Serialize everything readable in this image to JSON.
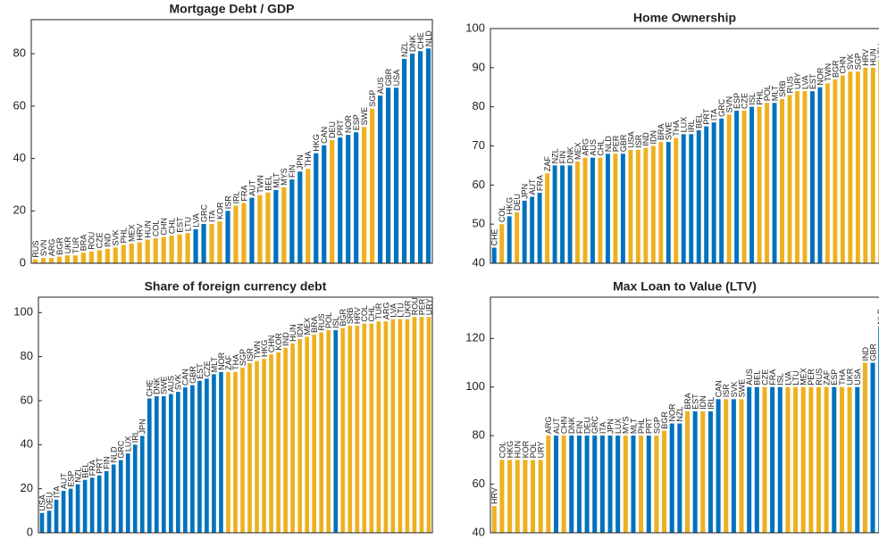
{
  "chart_data": [
    {
      "type": "bar",
      "title": "Mortgage Debt / GDP",
      "categories": [
        "RUS",
        "SVN",
        "ARG",
        "BGR",
        "UKR",
        "TUR",
        "BRA",
        "ROU",
        "CZE",
        "IND",
        "SVK",
        "PHL",
        "MEX",
        "HRV",
        "HUN",
        "COL",
        "CHN",
        "CHL",
        "EST",
        "LTU",
        "LVA",
        "GRC",
        "ITA",
        "KOR",
        "ISR",
        "IRL",
        "FRA",
        "AUT",
        "TWN",
        "BEL",
        "MLT",
        "MYS",
        "FIN",
        "JPN",
        "THA",
        "HKG",
        "CAN",
        "DEU",
        "PRT",
        "NOR",
        "ESP",
        "SWE",
        "SGP",
        "AUS",
        "GBR",
        "USA",
        "NZL",
        "DNK",
        "CHE",
        "NLD"
      ],
      "values": [
        1.5,
        2,
        2,
        2.5,
        3,
        3,
        4,
        4.5,
        5,
        5.5,
        6,
        7,
        7.5,
        8,
        9,
        9.5,
        10,
        10.5,
        11,
        11.5,
        13,
        15,
        15,
        16,
        20,
        22,
        23,
        25,
        26,
        27,
        28,
        29,
        32,
        35,
        36,
        42,
        45,
        47,
        48,
        49,
        50,
        52,
        59,
        64,
        67,
        67,
        78,
        80,
        81,
        82
      ],
      "colors": [
        "#edb120",
        "#edb120",
        "#edb120",
        "#edb120",
        "#edb120",
        "#edb120",
        "#edb120",
        "#edb120",
        "#edb120",
        "#edb120",
        "#edb120",
        "#edb120",
        "#edb120",
        "#edb120",
        "#edb120",
        "#edb120",
        "#edb120",
        "#edb120",
        "#edb120",
        "#edb120",
        "#0072bd",
        "#0072bd",
        "#edb120",
        "#edb120",
        "#0072bd",
        "#edb120",
        "#edb120",
        "#0072bd",
        "#edb120",
        "#edb120",
        "#0072bd",
        "#edb120",
        "#0072bd",
        "#0072bd",
        "#edb120",
        "#0072bd",
        "#0072bd",
        "#edb120",
        "#0072bd",
        "#0072bd",
        "#0072bd",
        "#edb120",
        "#edb120",
        "#0072bd",
        "#0072bd",
        "#0072bd",
        "#0072bd",
        "#0072bd",
        "#0072bd",
        "#0072bd"
      ],
      "ylim": [
        0,
        93
      ],
      "yticks": [
        0,
        20,
        40,
        60,
        80
      ]
    },
    {
      "type": "bar",
      "title": "Home Ownership",
      "categories": [
        "CHE",
        "COL",
        "HKG",
        "DEU",
        "JPN",
        "AUT",
        "FRA",
        "ZAF",
        "NZL",
        "FIN",
        "DNK",
        "MEX",
        "ARG",
        "AUS",
        "CHL",
        "NLD",
        "PER",
        "GBR",
        "USA",
        "ISR",
        "IND",
        "IDN",
        "BRA",
        "SWE",
        "THA",
        "LUX",
        "IRL",
        "BEL",
        "PRT",
        "ITA",
        "GRC",
        "SVN",
        "ESP",
        "CZE",
        "ISL",
        "PHL",
        "POL",
        "MLT",
        "SRB",
        "RUS",
        "URY",
        "LVA",
        "EST",
        "NOR",
        "TWN",
        "BGR",
        "CHN",
        "SVK",
        "SGP",
        "HRV",
        "HUN",
        "LTU"
      ],
      "values": [
        44,
        50,
        52,
        53,
        56,
        57,
        58,
        63,
        65,
        65,
        65,
        66,
        67,
        67,
        67,
        68,
        68,
        68,
        69,
        69,
        69.5,
        70,
        71,
        71,
        72,
        73,
        73,
        74,
        75,
        76,
        77,
        78,
        79,
        79,
        80,
        80,
        81,
        81,
        82,
        83,
        84,
        84,
        84,
        85,
        86,
        87,
        88,
        89,
        89,
        90,
        90,
        92
      ],
      "colors": [
        "#0072bd",
        "#edb120",
        "#0072bd",
        "#edb120",
        "#0072bd",
        "#0072bd",
        "#0072bd",
        "#edb120",
        "#0072bd",
        "#0072bd",
        "#0072bd",
        "#edb120",
        "#edb120",
        "#0072bd",
        "#edb120",
        "#0072bd",
        "#edb120",
        "#0072bd",
        "#edb120",
        "#edb120",
        "#edb120",
        "#edb120",
        "#edb120",
        "#0072bd",
        "#edb120",
        "#0072bd",
        "#0072bd",
        "#0072bd",
        "#0072bd",
        "#0072bd",
        "#0072bd",
        "#edb120",
        "#0072bd",
        "#edb120",
        "#0072bd",
        "#edb120",
        "#edb120",
        "#0072bd",
        "#edb120",
        "#edb120",
        "#edb120",
        "#edb120",
        "#0072bd",
        "#0072bd",
        "#edb120",
        "#edb120",
        "#edb120",
        "#edb120",
        "#edb120",
        "#edb120",
        "#edb120",
        "#edb120"
      ],
      "ylim": [
        40,
        100
      ],
      "yticks": [
        40,
        50,
        60,
        70,
        80,
        90,
        100
      ]
    },
    {
      "type": "bar",
      "title": "Share of foreign currency debt",
      "categories": [
        "USA",
        "DEU",
        "ITA",
        "AUT",
        "ESP",
        "NZL",
        "BEL",
        "FRA",
        "PRT",
        "FIN",
        "NLD",
        "GRC",
        "LUX",
        "IRL",
        "JPN",
        "CHE",
        "DNK",
        "SWE",
        "AUS",
        "SVK",
        "CAN",
        "GBR",
        "EST",
        "CZE",
        "MLT",
        "NOR",
        "ZAF",
        "THA",
        "SGP",
        "ISR",
        "TWN",
        "HKG",
        "CHN",
        "KOR",
        "IND",
        "HUN",
        "IDN",
        "MEX",
        "BRA",
        "RUS",
        "POL",
        "ISL",
        "BGR",
        "SRB",
        "HRV",
        "COL",
        "CHL",
        "TUR",
        "ARG",
        "LVA",
        "LTU",
        "UKR",
        "ROU",
        "PER",
        "URY"
      ],
      "values": [
        9,
        10,
        15,
        19,
        20,
        22,
        24,
        25,
        26,
        28,
        31,
        33,
        36,
        40,
        44,
        61,
        62,
        62,
        63,
        64,
        66,
        67,
        69,
        70,
        72,
        73,
        73,
        73,
        75,
        77,
        78,
        79,
        81,
        82,
        84,
        86,
        88,
        89,
        90,
        91,
        92,
        92,
        93,
        94,
        94,
        95,
        95,
        96,
        96,
        97,
        97,
        97,
        98,
        98,
        98
      ],
      "colors": [
        "#0072bd",
        "#0072bd",
        "#0072bd",
        "#0072bd",
        "#0072bd",
        "#0072bd",
        "#0072bd",
        "#0072bd",
        "#0072bd",
        "#0072bd",
        "#0072bd",
        "#0072bd",
        "#0072bd",
        "#0072bd",
        "#0072bd",
        "#0072bd",
        "#0072bd",
        "#0072bd",
        "#0072bd",
        "#0072bd",
        "#0072bd",
        "#0072bd",
        "#0072bd",
        "#0072bd",
        "#0072bd",
        "#0072bd",
        "#edb120",
        "#edb120",
        "#edb120",
        "#edb120",
        "#edb120",
        "#edb120",
        "#edb120",
        "#edb120",
        "#edb120",
        "#edb120",
        "#edb120",
        "#edb120",
        "#edb120",
        "#edb120",
        "#edb120",
        "#0072bd",
        "#edb120",
        "#edb120",
        "#edb120",
        "#edb120",
        "#edb120",
        "#edb120",
        "#edb120",
        "#edb120",
        "#edb120",
        "#edb120",
        "#edb120",
        "#edb120",
        "#edb120"
      ],
      "ylim": [
        0,
        107
      ],
      "yticks": [
        0,
        20,
        40,
        60,
        80,
        100
      ]
    },
    {
      "type": "bar",
      "title": "Max Loan to Value (LTV)",
      "categories": [
        "HRV",
        "COL",
        "HKG",
        "HUN",
        "KOR",
        "POL",
        "URY",
        "ARG",
        "AUT",
        "CHN",
        "DNK",
        "FIN",
        "DEU",
        "GRC",
        "ITA",
        "JPN",
        "LUX",
        "MYS",
        "MLT",
        "PHL",
        "PRT",
        "SGP",
        "BGR",
        "NOR",
        "NZL",
        "BRA",
        "EST",
        "IDN",
        "IRL",
        "CAN",
        "ISR",
        "SVK",
        "SWE",
        "AUS",
        "BEL",
        "CZE",
        "FRA",
        "ISL",
        "LVA",
        "LTU",
        "MEX",
        "PER",
        "RUS",
        "ZAF",
        "ESP",
        "THA",
        "UKR",
        "USA",
        "IND",
        "GBR",
        "NLD"
      ],
      "values": [
        51,
        70,
        70,
        70,
        70,
        70,
        70,
        80,
        80,
        80,
        80,
        80,
        80,
        80,
        80,
        80,
        80,
        80,
        80,
        80,
        80,
        80,
        82,
        85,
        85,
        90,
        90,
        90,
        90,
        95,
        95,
        95,
        95,
        100,
        100,
        100,
        100,
        100,
        100,
        100,
        100,
        100,
        100,
        100,
        100,
        100,
        100,
        100,
        110,
        110,
        125
      ],
      "colors": [
        "#edb120",
        "#edb120",
        "#edb120",
        "#edb120",
        "#edb120",
        "#edb120",
        "#edb120",
        "#edb120",
        "#0072bd",
        "#edb120",
        "#0072bd",
        "#0072bd",
        "#0072bd",
        "#0072bd",
        "#0072bd",
        "#0072bd",
        "#0072bd",
        "#edb120",
        "#0072bd",
        "#edb120",
        "#0072bd",
        "#edb120",
        "#edb120",
        "#0072bd",
        "#0072bd",
        "#edb120",
        "#0072bd",
        "#edb120",
        "#0072bd",
        "#0072bd",
        "#edb120",
        "#0072bd",
        "#edb120",
        "#0072bd",
        "#0072bd",
        "#edb120",
        "#0072bd",
        "#0072bd",
        "#edb120",
        "#edb120",
        "#edb120",
        "#edb120",
        "#edb120",
        "#edb120",
        "#0072bd",
        "#edb120",
        "#edb120",
        "#0072bd",
        "#edb120",
        "#0072bd",
        "#0072bd"
      ],
      "ylim": [
        40,
        137
      ],
      "yticks": [
        40,
        60,
        80,
        100,
        120
      ]
    }
  ]
}
